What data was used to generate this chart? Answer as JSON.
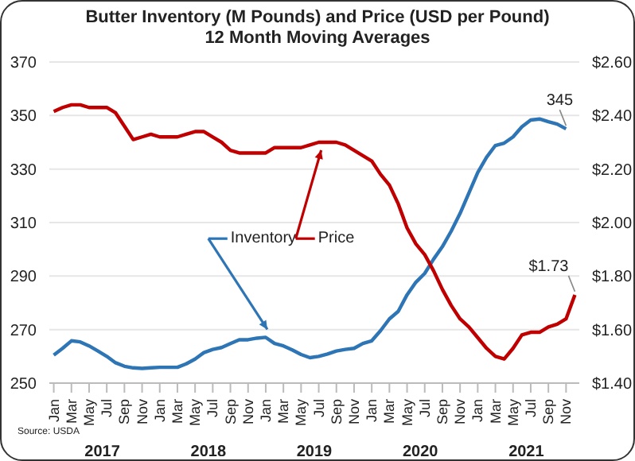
{
  "chart_data": {
    "type": "line",
    "title": "Butter Inventory (M Pounds) and Price (USD per Pound)",
    "subtitle": "12 Month Moving Averages",
    "categories": [
      "Jan",
      null,
      "Mar",
      null,
      "May",
      null,
      "Jul",
      null,
      "Sep",
      null,
      "Nov",
      null,
      "Jan",
      null,
      "Mar",
      null,
      "May",
      null,
      "Jul",
      null,
      "Sep",
      null,
      "Nov",
      null,
      "Jan",
      null,
      "Mar",
      null,
      "May",
      null,
      "Jul",
      null,
      "Sep",
      null,
      "Nov",
      null,
      "Jan",
      null,
      "Mar",
      null,
      "May",
      null,
      "Jul",
      null,
      "Sep",
      null,
      "Nov",
      null,
      "Jan",
      null,
      "Mar",
      null,
      "May",
      null,
      "Jul",
      null,
      "Sep",
      null,
      "Nov",
      null
    ],
    "series": [
      {
        "name": "Inventory",
        "color": "#2e75b6",
        "values": [
          260.5,
          263,
          265.8,
          265.4,
          263.9,
          262,
          260,
          257.6,
          256.3,
          255.7,
          255.5,
          255.7,
          255.9,
          255.9,
          255.9,
          257.2,
          259,
          261.4,
          262.6,
          263.3,
          264.8,
          266.2,
          266.2,
          266.8,
          267.1,
          264.8,
          263.9,
          262.4,
          260.7,
          259.5,
          260,
          260.9,
          262,
          262.6,
          263,
          264.8,
          265.8,
          269.6,
          274,
          276.8,
          283,
          287.7,
          291,
          296.3,
          301,
          306.8,
          313.4,
          321,
          328.7,
          334.4,
          338.8,
          339.7,
          342,
          345.8,
          348.3,
          348.7,
          347.7,
          346.8,
          345,
          null
        ],
        "value_labels": [
          null,
          null,
          null,
          null,
          null,
          null,
          null,
          null,
          null,
          null,
          null,
          null,
          null,
          null,
          null,
          null,
          null,
          null,
          null,
          null,
          null,
          null,
          null,
          null,
          null,
          null,
          null,
          null,
          null,
          null,
          null,
          null,
          null,
          null,
          null,
          null,
          null,
          null,
          null,
          null,
          null,
          null,
          null,
          null,
          null,
          null,
          null,
          null,
          null,
          null,
          null,
          null,
          null,
          null,
          null,
          null,
          null,
          null,
          "345",
          null
        ]
      },
      {
        "name": "Price",
        "color": "#c00000",
        "axis": "y2",
        "values": [
          2.415,
          2.43,
          2.44,
          2.44,
          2.43,
          2.43,
          2.43,
          2.41,
          2.36,
          2.31,
          2.32,
          2.33,
          2.32,
          2.32,
          2.32,
          2.33,
          2.34,
          2.34,
          2.32,
          2.3,
          2.27,
          2.26,
          2.26,
          2.26,
          2.26,
          2.28,
          2.28,
          2.28,
          2.28,
          2.29,
          2.3,
          2.3,
          2.3,
          2.29,
          2.27,
          2.25,
          2.23,
          2.18,
          2.14,
          2.07,
          1.98,
          1.92,
          1.88,
          1.82,
          1.75,
          1.69,
          1.64,
          1.61,
          1.57,
          1.53,
          1.5,
          1.49,
          1.53,
          1.58,
          1.59,
          1.59,
          1.61,
          1.62,
          1.64,
          1.73
        ],
        "value_labels": [
          null,
          null,
          null,
          null,
          null,
          null,
          null,
          null,
          null,
          null,
          null,
          null,
          null,
          null,
          null,
          null,
          null,
          null,
          null,
          null,
          null,
          null,
          null,
          null,
          null,
          null,
          null,
          null,
          null,
          null,
          null,
          null,
          null,
          null,
          null,
          null,
          null,
          null,
          null,
          null,
          null,
          null,
          null,
          null,
          null,
          null,
          null,
          null,
          null,
          null,
          null,
          null,
          null,
          null,
          null,
          null,
          null,
          null,
          null,
          "$1.73"
        ]
      }
    ],
    "ylim": [
      250,
      370
    ],
    "yticks": [
      250,
      270,
      290,
      310,
      330,
      350,
      370
    ],
    "y2lim": [
      1.4,
      2.6
    ],
    "y2ticks": [
      {
        "value": 1.4,
        "label": "$1.40"
      },
      {
        "value": 1.6,
        "label": "$1.60"
      },
      {
        "value": 1.8,
        "label": "$1.80"
      },
      {
        "value": 2.0,
        "label": "$2.00"
      },
      {
        "value": 2.2,
        "label": "$2.20"
      },
      {
        "value": 2.4,
        "label": "$2.40"
      },
      {
        "value": 2.6,
        "label": "$2.60"
      }
    ],
    "grid": "y",
    "legend": "center",
    "marker": "none",
    "line_style": "solid",
    "annotations": [
      "Source: USDA",
      "2017",
      "2018",
      "2019",
      "2020",
      "2021"
    ]
  }
}
